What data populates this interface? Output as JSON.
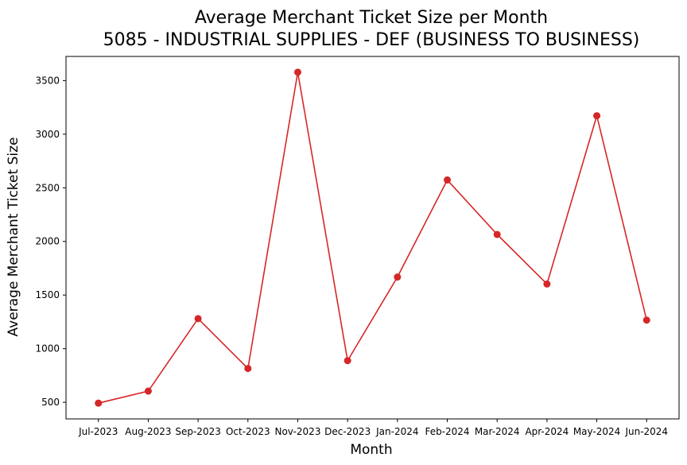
{
  "chart_data": {
    "type": "line",
    "title_line1": "Average Merchant Ticket Size per Month",
    "title_line2": "5085 - INDUSTRIAL SUPPLIES - DEF (BUSINESS TO BUSINESS)",
    "xlabel": "Month",
    "ylabel": "Average Merchant Ticket Size",
    "categories": [
      "Jul-2023",
      "Aug-2023",
      "Sep-2023",
      "Oct-2023",
      "Nov-2023",
      "Dec-2023",
      "Jan-2024",
      "Feb-2024",
      "Mar-2024",
      "Apr-2024",
      "May-2024",
      "Jun-2024"
    ],
    "series": [
      {
        "values": [
          492,
          604,
          1280,
          815,
          3578,
          888,
          1668,
          2573,
          2065,
          1603,
          3172,
          1266
        ],
        "color": "#d62728",
        "marker": "circle"
      }
    ],
    "yticks": [
      500,
      1000,
      1500,
      2000,
      2500,
      3000,
      3500
    ],
    "ylim": [
      345,
      3725
    ],
    "grid": false,
    "legend": "none"
  }
}
